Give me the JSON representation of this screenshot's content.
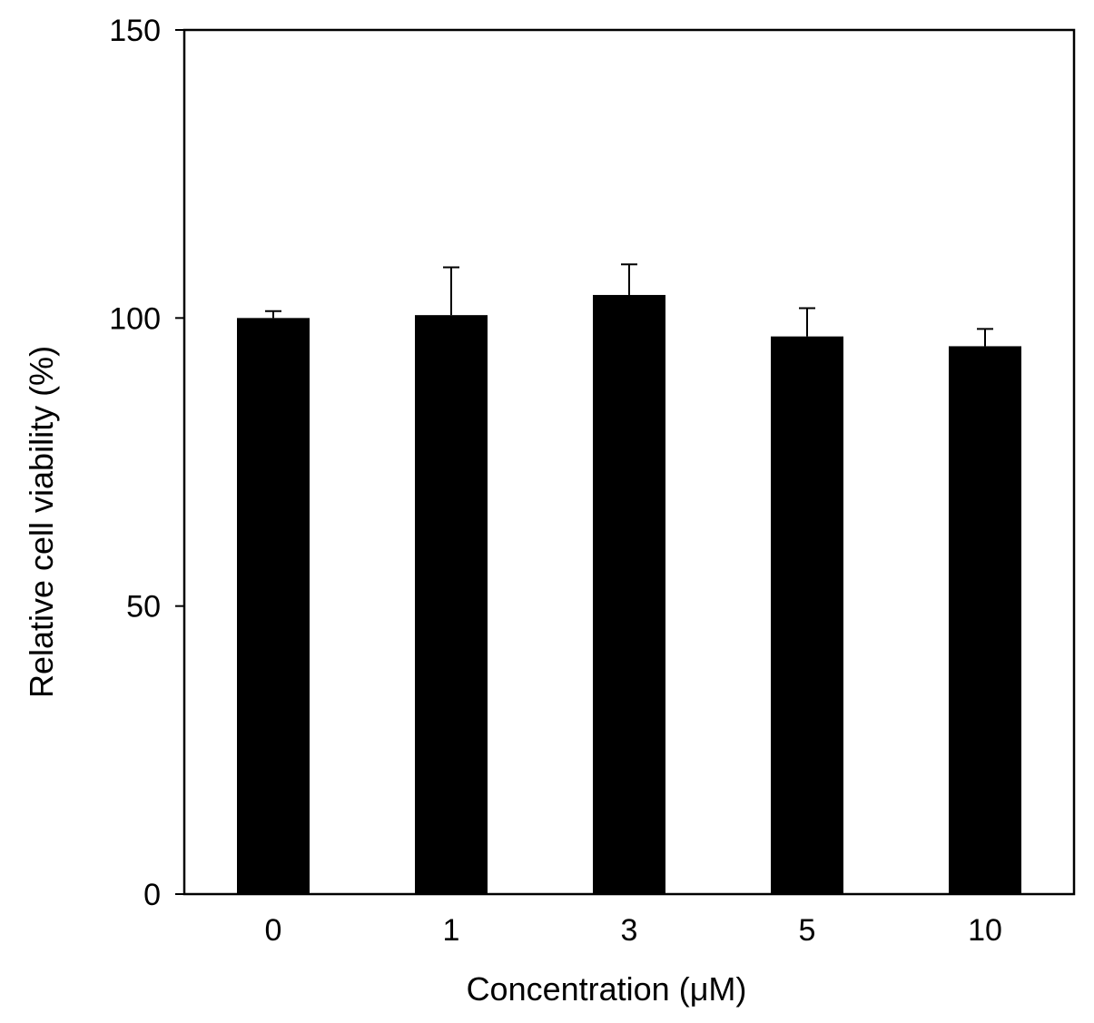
{
  "chart_data": {
    "type": "bar",
    "title": "",
    "xlabel": "Concentration (μM)",
    "ylabel": "Relative cell viability (%)",
    "categories": [
      "0",
      "1",
      "3",
      "5",
      "10"
    ],
    "values": [
      100.0,
      100.5,
      104.0,
      96.8,
      95.1
    ],
    "error_upper": [
      1.2,
      8.3,
      5.3,
      4.9,
      3.0
    ],
    "ylim": [
      0,
      150
    ],
    "yticks": [
      0,
      50,
      100,
      150
    ],
    "grid": false,
    "bar_color": "#000000"
  }
}
